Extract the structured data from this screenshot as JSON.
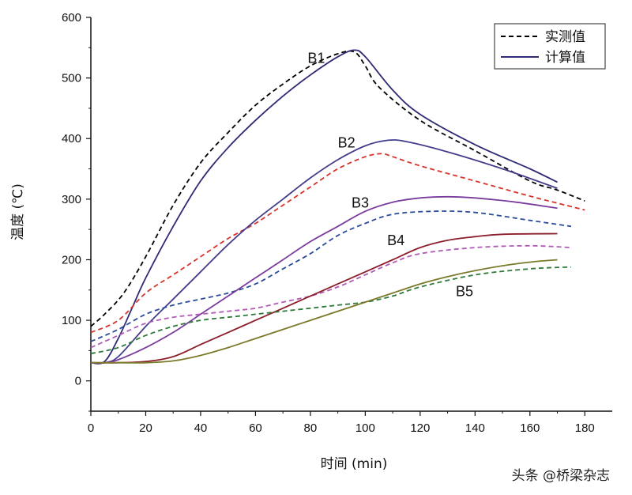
{
  "chart_data": {
    "type": "line",
    "title": "",
    "xlabel": "时间 (min)",
    "ylabel": "温度 (℃)",
    "xlim": [
      0,
      190
    ],
    "ylim": [
      -50,
      600
    ],
    "xticks": [
      0,
      20,
      40,
      60,
      80,
      100,
      120,
      140,
      160,
      180
    ],
    "yticks": [
      0,
      100,
      200,
      300,
      400,
      500,
      600
    ],
    "legend": {
      "position": "top-right",
      "entries": [
        {
          "label": "实测值",
          "style": "dashed",
          "color": "#000000"
        },
        {
          "label": "计算值",
          "style": "solid",
          "color": "#2e2b74"
        }
      ]
    },
    "series": [
      {
        "name": "B1 实测值",
        "group": "B1",
        "kind": "measured",
        "color": "#000000",
        "x": [
          0,
          5,
          12,
          20,
          30,
          40,
          50,
          60,
          70,
          80,
          90,
          96,
          100,
          105,
          120,
          140,
          160,
          170,
          180
        ],
        "y": [
          90,
          110,
          145,
          205,
          290,
          360,
          410,
          455,
          490,
          520,
          540,
          543,
          520,
          485,
          430,
          380,
          330,
          315,
          297
        ]
      },
      {
        "name": "B1 计算值",
        "group": "B1",
        "kind": "calculated",
        "color": "#2e2b74",
        "x": [
          0,
          5,
          10,
          15,
          20,
          30,
          40,
          50,
          60,
          70,
          80,
          90,
          96,
          100,
          110,
          120,
          140,
          160,
          170
        ],
        "y": [
          30,
          32,
          70,
          120,
          170,
          255,
          330,
          385,
          430,
          470,
          505,
          535,
          546,
          535,
          480,
          440,
          390,
          350,
          328
        ]
      },
      {
        "name": "B2 实测值",
        "group": "B2",
        "kind": "measured",
        "color": "#d9342b",
        "x": [
          0,
          10,
          20,
          30,
          40,
          50,
          60,
          70,
          80,
          90,
          100,
          106,
          110,
          120,
          140,
          160,
          180
        ],
        "y": [
          80,
          100,
          145,
          175,
          205,
          235,
          260,
          290,
          320,
          350,
          370,
          375,
          370,
          355,
          330,
          305,
          282
        ]
      },
      {
        "name": "B2 计算值",
        "group": "B2",
        "kind": "calculated",
        "color": "#443d8c",
        "x": [
          0,
          5,
          10,
          20,
          30,
          40,
          50,
          60,
          70,
          80,
          90,
          100,
          108,
          115,
          130,
          150,
          170
        ],
        "y": [
          30,
          30,
          40,
          90,
          135,
          180,
          225,
          265,
          300,
          335,
          365,
          388,
          397,
          395,
          378,
          350,
          318
        ]
      },
      {
        "name": "B3 实测值",
        "group": "B3",
        "kind": "measured",
        "color": "#2a4b9c",
        "x": [
          0,
          10,
          20,
          30,
          40,
          50,
          60,
          70,
          80,
          90,
          100,
          110,
          125,
          140,
          160,
          175
        ],
        "y": [
          65,
          85,
          110,
          125,
          135,
          145,
          160,
          185,
          210,
          240,
          260,
          275,
          280,
          278,
          265,
          255
        ]
      },
      {
        "name": "B3 计算值",
        "group": "B3",
        "kind": "calculated",
        "color": "#7a3c9e",
        "x": [
          0,
          5,
          10,
          20,
          30,
          40,
          50,
          60,
          70,
          80,
          90,
          100,
          110,
          120,
          130,
          140,
          155,
          170
        ],
        "y": [
          30,
          30,
          35,
          55,
          80,
          110,
          140,
          170,
          200,
          230,
          255,
          280,
          295,
          302,
          304,
          302,
          295,
          285
        ]
      },
      {
        "name": "B4 实测值",
        "group": "B4",
        "kind": "measured",
        "color": "#b05ab5",
        "x": [
          0,
          10,
          20,
          30,
          40,
          50,
          60,
          70,
          80,
          90,
          100,
          110,
          120,
          140,
          160,
          175
        ],
        "y": [
          55,
          75,
          95,
          105,
          110,
          115,
          120,
          130,
          140,
          155,
          175,
          195,
          210,
          220,
          223,
          220
        ]
      },
      {
        "name": "B4 计算值",
        "group": "B4",
        "kind": "calculated",
        "color": "#8b1e2a",
        "x": [
          0,
          10,
          20,
          30,
          40,
          50,
          60,
          70,
          80,
          90,
          100,
          110,
          120,
          130,
          140,
          150,
          170
        ],
        "y": [
          30,
          30,
          32,
          40,
          60,
          80,
          100,
          120,
          140,
          160,
          180,
          200,
          220,
          232,
          238,
          242,
          243
        ]
      },
      {
        "name": "B5 实测值",
        "group": "B5",
        "kind": "measured",
        "color": "#2f7a3a",
        "x": [
          0,
          10,
          20,
          30,
          40,
          50,
          60,
          70,
          80,
          90,
          100,
          110,
          120,
          140,
          160,
          175
        ],
        "y": [
          45,
          55,
          75,
          90,
          100,
          105,
          110,
          115,
          120,
          125,
          130,
          140,
          155,
          175,
          185,
          188
        ]
      },
      {
        "name": "B5 计算值",
        "group": "B5",
        "kind": "calculated",
        "color": "#7a7a2a",
        "x": [
          0,
          10,
          20,
          30,
          40,
          50,
          60,
          70,
          80,
          90,
          100,
          110,
          120,
          130,
          140,
          150,
          160,
          170
        ],
        "y": [
          30,
          30,
          30,
          33,
          42,
          55,
          70,
          85,
          100,
          115,
          130,
          145,
          160,
          172,
          182,
          190,
          196,
          200
        ]
      }
    ],
    "annotations": [
      {
        "text": "B1",
        "x": 79,
        "y": 525
      },
      {
        "text": "B2",
        "x": 90,
        "y": 385
      },
      {
        "text": "B3",
        "x": 95,
        "y": 286
      },
      {
        "text": "B4",
        "x": 108,
        "y": 224
      },
      {
        "text": "B5",
        "x": 133,
        "y": 140
      }
    ]
  },
  "watermark": "头条 @桥梁杂志"
}
